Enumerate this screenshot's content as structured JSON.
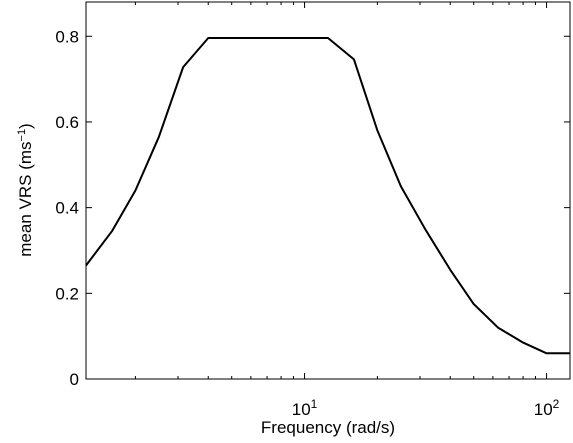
{
  "chart_data": {
    "type": "line",
    "xlabel": "Frequency (rad/s)",
    "ylabel": "mean VRS (ms",
    "ylabel_superscript": "−1",
    "ylabel_suffix": ")",
    "x_scale": "log",
    "xlim": [
      1.25,
      125
    ],
    "ylim": [
      0,
      0.88
    ],
    "grid": false,
    "x_ticks": [
      {
        "value": 10,
        "base": "10",
        "exponent": "1"
      },
      {
        "value": 100,
        "base": "10",
        "exponent": "2"
      }
    ],
    "y_ticks": [
      {
        "value": 0,
        "label": "0"
      },
      {
        "value": 0.2,
        "label": "0.2"
      },
      {
        "value": 0.4,
        "label": "0.4"
      },
      {
        "value": 0.6,
        "label": "0.6"
      },
      {
        "value": 0.8,
        "label": "0.8"
      }
    ],
    "series": [
      {
        "color": "#000000",
        "x": [
          1.25,
          1.6,
          2.0,
          2.5,
          3.15,
          4.0,
          5.0,
          6.3,
          8.0,
          10.0,
          12.5,
          16.0,
          20.0,
          25.0,
          31.5,
          40.0,
          50.0,
          63.0,
          80.0,
          100.0,
          125.0
        ],
        "y": [
          0.265,
          0.345,
          0.44,
          0.565,
          0.728,
          0.796,
          0.796,
          0.796,
          0.796,
          0.796,
          0.796,
          0.746,
          0.58,
          0.45,
          0.35,
          0.255,
          0.175,
          0.12,
          0.085,
          0.06,
          0.06
        ]
      }
    ]
  }
}
